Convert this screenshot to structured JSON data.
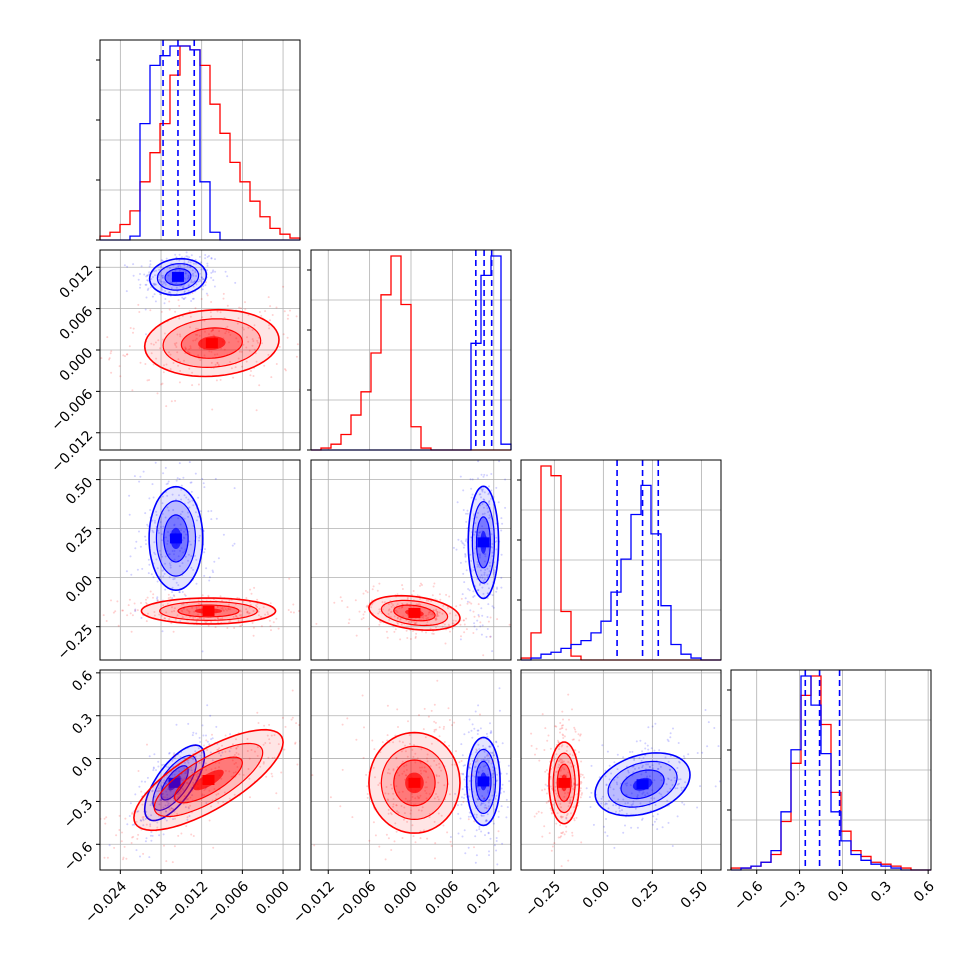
{
  "chart_data": {
    "type": "corner",
    "title": "",
    "grid": true,
    "series": [
      {
        "name": "",
        "color": "#0000ff"
      },
      {
        "name": "",
        "color": "#ff0000"
      }
    ],
    "params": [
      {
        "xlim": [
          -0.027,
          0.0025
        ],
        "ticks": [
          "−0.024",
          "−0.018",
          "−0.012",
          "−0.006",
          "0.000"
        ],
        "tickvals": [
          -0.024,
          -0.018,
          -0.012,
          -0.006,
          0.0
        ]
      },
      {
        "xlim": [
          -0.0145,
          0.0145
        ],
        "ticks": [
          "−0.012",
          "−0.006",
          "0.000",
          "0.006",
          "0.012"
        ],
        "tickvals": [
          -0.012,
          -0.006,
          0.0,
          0.006,
          0.012
        ]
      },
      {
        "xlim": [
          -0.42,
          0.6
        ],
        "ticks": [
          "−0.25",
          "0.00",
          "0.25",
          "0.50"
        ],
        "tickvals": [
          -0.25,
          0.0,
          0.25,
          0.5
        ]
      },
      {
        "xlim": [
          -0.78,
          0.62
        ],
        "ticks": [
          "−0.6",
          "−0.3",
          "0.0",
          "0.3",
          "0.6"
        ],
        "tickvals": [
          -0.6,
          -0.3,
          0.0,
          0.3,
          0.6
        ]
      }
    ],
    "quantiles": {
      "color": "#0000ff",
      "values": [
        [
          -0.0177,
          -0.0155,
          -0.0131
        ],
        [
          0.0094,
          0.0106,
          0.0117
        ],
        [
          0.07,
          0.2,
          0.28
        ],
        [
          -0.26,
          -0.16,
          -0.02
        ]
      ]
    },
    "histograms": [
      {
        "bins": 20,
        "blue_counts": [
          0,
          0,
          0,
          2,
          60,
          90,
          95,
          100,
          100,
          98,
          30,
          4,
          0,
          0,
          0,
          0,
          0,
          0,
          0,
          0
        ],
        "red_counts": [
          2,
          4,
          8,
          15,
          30,
          45,
          60,
          85,
          100,
          98,
          90,
          70,
          55,
          40,
          30,
          20,
          12,
          6,
          3,
          1
        ]
      },
      {
        "bins": 20,
        "blue_counts": [
          0,
          0,
          0,
          0,
          0,
          0,
          0,
          0,
          0,
          0,
          0,
          0,
          0,
          0,
          0,
          0,
          55,
          90,
          100,
          3
        ],
        "red_counts": [
          0,
          1,
          3,
          8,
          18,
          30,
          50,
          80,
          100,
          75,
          12,
          1,
          0,
          0,
          0,
          0,
          0,
          0,
          0,
          0
        ]
      },
      {
        "bins": 20,
        "blue_counts": [
          0,
          1,
          3,
          4,
          6,
          8,
          10,
          14,
          20,
          35,
          52,
          75,
          90,
          65,
          28,
          8,
          3,
          1,
          0,
          0
        ],
        "red_counts": [
          1,
          14,
          100,
          95,
          25,
          2,
          0,
          0,
          0,
          0,
          0,
          0,
          0,
          0,
          0,
          0,
          0,
          0,
          0,
          0
        ]
      },
      {
        "bins": 20,
        "blue_counts": [
          0,
          1,
          2,
          4,
          10,
          30,
          62,
          100,
          85,
          60,
          30,
          15,
          8,
          5,
          3,
          2,
          1,
          0,
          0,
          0
        ],
        "red_counts": [
          1,
          1,
          2,
          4,
          8,
          25,
          55,
          90,
          100,
          75,
          40,
          20,
          10,
          7,
          4,
          3,
          2,
          1,
          0,
          0
        ]
      }
    ],
    "blobs": [
      {
        "pair": [
          1,
          0
        ],
        "series": "blue",
        "mean": [
          -0.0155,
          0.0106
        ],
        "sd": [
          0.0019,
          0.0012
        ],
        "rho": 0.1
      },
      {
        "pair": [
          1,
          0
        ],
        "series": "red",
        "mean": [
          -0.0105,
          0.001
        ],
        "sd": [
          0.0045,
          0.0022
        ],
        "rho": 0.1
      },
      {
        "pair": [
          2,
          0
        ],
        "series": "blue",
        "mean": [
          -0.0158,
          0.2
        ],
        "sd": [
          0.0018,
          0.12
        ],
        "rho": 0.0
      },
      {
        "pair": [
          2,
          0
        ],
        "series": "red",
        "mean": [
          -0.011,
          -0.17
        ],
        "sd": [
          0.0045,
          0.03
        ],
        "rho": 0.0
      },
      {
        "pair": [
          2,
          1
        ],
        "series": "blue",
        "mean": [
          0.0105,
          0.18
        ],
        "sd": [
          0.001,
          0.13
        ],
        "rho": 0.0
      },
      {
        "pair": [
          2,
          1
        ],
        "series": "red",
        "mean": [
          0.0005,
          -0.18
        ],
        "sd": [
          0.003,
          0.04
        ],
        "rho": -0.3
      },
      {
        "pair": [
          3,
          0
        ],
        "series": "blue",
        "mean": [
          -0.016,
          -0.17
        ],
        "sd": [
          0.002,
          0.12
        ],
        "rho": 0.7
      },
      {
        "pair": [
          3,
          0
        ],
        "series": "red",
        "mean": [
          -0.011,
          -0.15
        ],
        "sd": [
          0.005,
          0.16
        ],
        "rho": 0.75
      },
      {
        "pair": [
          3,
          1
        ],
        "series": "blue",
        "mean": [
          0.0105,
          -0.16
        ],
        "sd": [
          0.0011,
          0.14
        ],
        "rho": 0.0
      },
      {
        "pair": [
          3,
          1
        ],
        "series": "red",
        "mean": [
          0.0005,
          -0.17
        ],
        "sd": [
          0.003,
          0.16
        ],
        "rho": 0.0
      },
      {
        "pair": [
          3,
          2
        ],
        "series": "blue",
        "mean": [
          0.2,
          -0.18
        ],
        "sd": [
          0.11,
          0.1
        ],
        "rho": 0.3
      },
      {
        "pair": [
          3,
          2
        ],
        "series": "red",
        "mean": [
          -0.2,
          -0.17
        ],
        "sd": [
          0.035,
          0.13
        ],
        "rho": 0.0
      }
    ]
  }
}
